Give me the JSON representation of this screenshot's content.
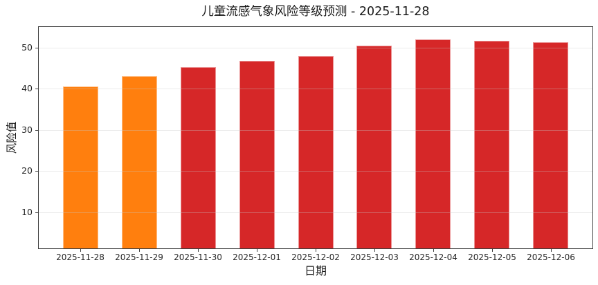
{
  "title": "儿童流感气象风险等级预测 - 2025-11-28",
  "colors": {
    "background": "#ffffff",
    "bar_orange": "#ff7f0e",
    "bar_red": "#d62728",
    "spine": "#3d3d3d",
    "gridline": "#ececec",
    "text": "#262626"
  },
  "chart_data": {
    "type": "bar",
    "title": "儿童流感气象风险等级预测 - 2025-11-28",
    "xlabel": "日期",
    "ylabel": "风险值",
    "categories": [
      "2025-11-28",
      "2025-11-29",
      "2025-11-30",
      "2025-12-01",
      "2025-12-02",
      "2025-12-03",
      "2025-12-04",
      "2025-12-05",
      "2025-12-06"
    ],
    "values": [
      40.5,
      43.0,
      45.2,
      46.7,
      48.0,
      50.5,
      52.0,
      51.6,
      51.3
    ],
    "bar_colors": [
      "#ff7f0e",
      "#ff7f0e",
      "#d62728",
      "#d62728",
      "#d62728",
      "#d62728",
      "#d62728",
      "#d62728",
      "#d62728"
    ],
    "yticks": [
      10,
      20,
      30,
      40,
      50
    ],
    "ylim": [
      1,
      55.2
    ],
    "grid": true,
    "legend": null
  }
}
